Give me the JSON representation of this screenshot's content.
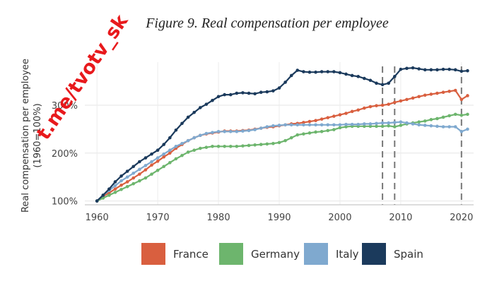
{
  "chart_data": {
    "type": "line",
    "title": "Figure 9. Real compensation per employee",
    "ylabel_line1": "Real compensation per employee",
    "ylabel_line2": "(1960=100%)",
    "xlabel": "",
    "xlim": [
      1958,
      2022
    ],
    "ylim": [
      92,
      390
    ],
    "x_ticks": [
      1960,
      1970,
      1980,
      1990,
      2000,
      2010,
      2020
    ],
    "x_tick_labels": [
      "1960",
      "1970",
      "1980",
      "1990",
      "2000",
      "2010",
      "2020"
    ],
    "y_ticks": [
      100,
      200,
      300
    ],
    "y_tick_labels": [
      "100%",
      "200%",
      "300%"
    ],
    "vertical_markers": [
      2007,
      2009,
      2020
    ],
    "x": [
      1960,
      1961,
      1962,
      1963,
      1964,
      1965,
      1966,
      1967,
      1968,
      1969,
      1970,
      1971,
      1972,
      1973,
      1974,
      1975,
      1976,
      1977,
      1978,
      1979,
      1980,
      1981,
      1982,
      1983,
      1984,
      1985,
      1986,
      1987,
      1988,
      1989,
      1990,
      1991,
      1992,
      1993,
      1994,
      1995,
      1996,
      1997,
      1998,
      1999,
      2000,
      2001,
      2002,
      2003,
      2004,
      2005,
      2006,
      2007,
      2008,
      2009,
      2010,
      2011,
      2012,
      2013,
      2014,
      2015,
      2016,
      2017,
      2018,
      2019,
      2020,
      2021
    ],
    "series": [
      {
        "name": "France",
        "color": "#d95f3f",
        "values": [
          100,
          110,
          117,
          125,
          133,
          140,
          148,
          156,
          165,
          175,
          183,
          192,
          200,
          210,
          218,
          226,
          232,
          237,
          240,
          242,
          244,
          246,
          246,
          246,
          247,
          248,
          250,
          252,
          254,
          255,
          257,
          259,
          261,
          262,
          264,
          266,
          268,
          271,
          274,
          277,
          280,
          283,
          287,
          290,
          294,
          297,
          299,
          300,
          302,
          306,
          309,
          312,
          315,
          318,
          321,
          323,
          325,
          327,
          329,
          331,
          312,
          320
        ]
      },
      {
        "name": "Germany",
        "color": "#6db56d",
        "values": [
          100,
          106,
          112,
          118,
          124,
          130,
          136,
          142,
          148,
          156,
          164,
          172,
          180,
          188,
          195,
          202,
          206,
          210,
          212,
          214,
          214,
          214,
          214,
          214,
          215,
          216,
          217,
          218,
          219,
          220,
          222,
          226,
          232,
          238,
          240,
          242,
          244,
          245,
          247,
          249,
          253,
          255,
          256,
          256,
          256,
          256,
          256,
          256,
          257,
          255,
          258,
          261,
          263,
          265,
          267,
          270,
          272,
          275,
          278,
          281,
          279,
          281
        ]
      },
      {
        "name": "Italy",
        "color": "#7fa9cf",
        "values": [
          100,
          112,
          122,
          132,
          142,
          150,
          158,
          166,
          174,
          182,
          190,
          198,
          206,
          214,
          220,
          226,
          232,
          237,
          241,
          243,
          245,
          245,
          245,
          245,
          246,
          247,
          249,
          252,
          255,
          257,
          258,
          259,
          259,
          259,
          259,
          259,
          259,
          259,
          259,
          259,
          259,
          260,
          260,
          260,
          261,
          261,
          262,
          263,
          263,
          264,
          265,
          263,
          261,
          259,
          258,
          257,
          256,
          255,
          255,
          255,
          245,
          250
        ]
      },
      {
        "name": "Spain",
        "color": "#1b3a5c",
        "values": [
          100,
          112,
          125,
          140,
          152,
          162,
          172,
          182,
          190,
          198,
          206,
          218,
          232,
          248,
          262,
          275,
          285,
          295,
          302,
          310,
          318,
          322,
          322,
          325,
          326,
          325,
          324,
          327,
          328,
          330,
          336,
          348,
          362,
          373,
          370,
          369,
          369,
          370,
          370,
          370,
          368,
          365,
          362,
          360,
          356,
          352,
          346,
          343,
          346,
          360,
          375,
          377,
          378,
          376,
          374,
          374,
          374,
          375,
          375,
          374,
          371,
          372
        ]
      }
    ],
    "legend": [
      "France",
      "Germany",
      "Italy",
      "Spain"
    ],
    "legend_position": "bottom"
  },
  "watermark": {
    "text": "t.me/tvotv_sk",
    "color": "#e8191c"
  }
}
